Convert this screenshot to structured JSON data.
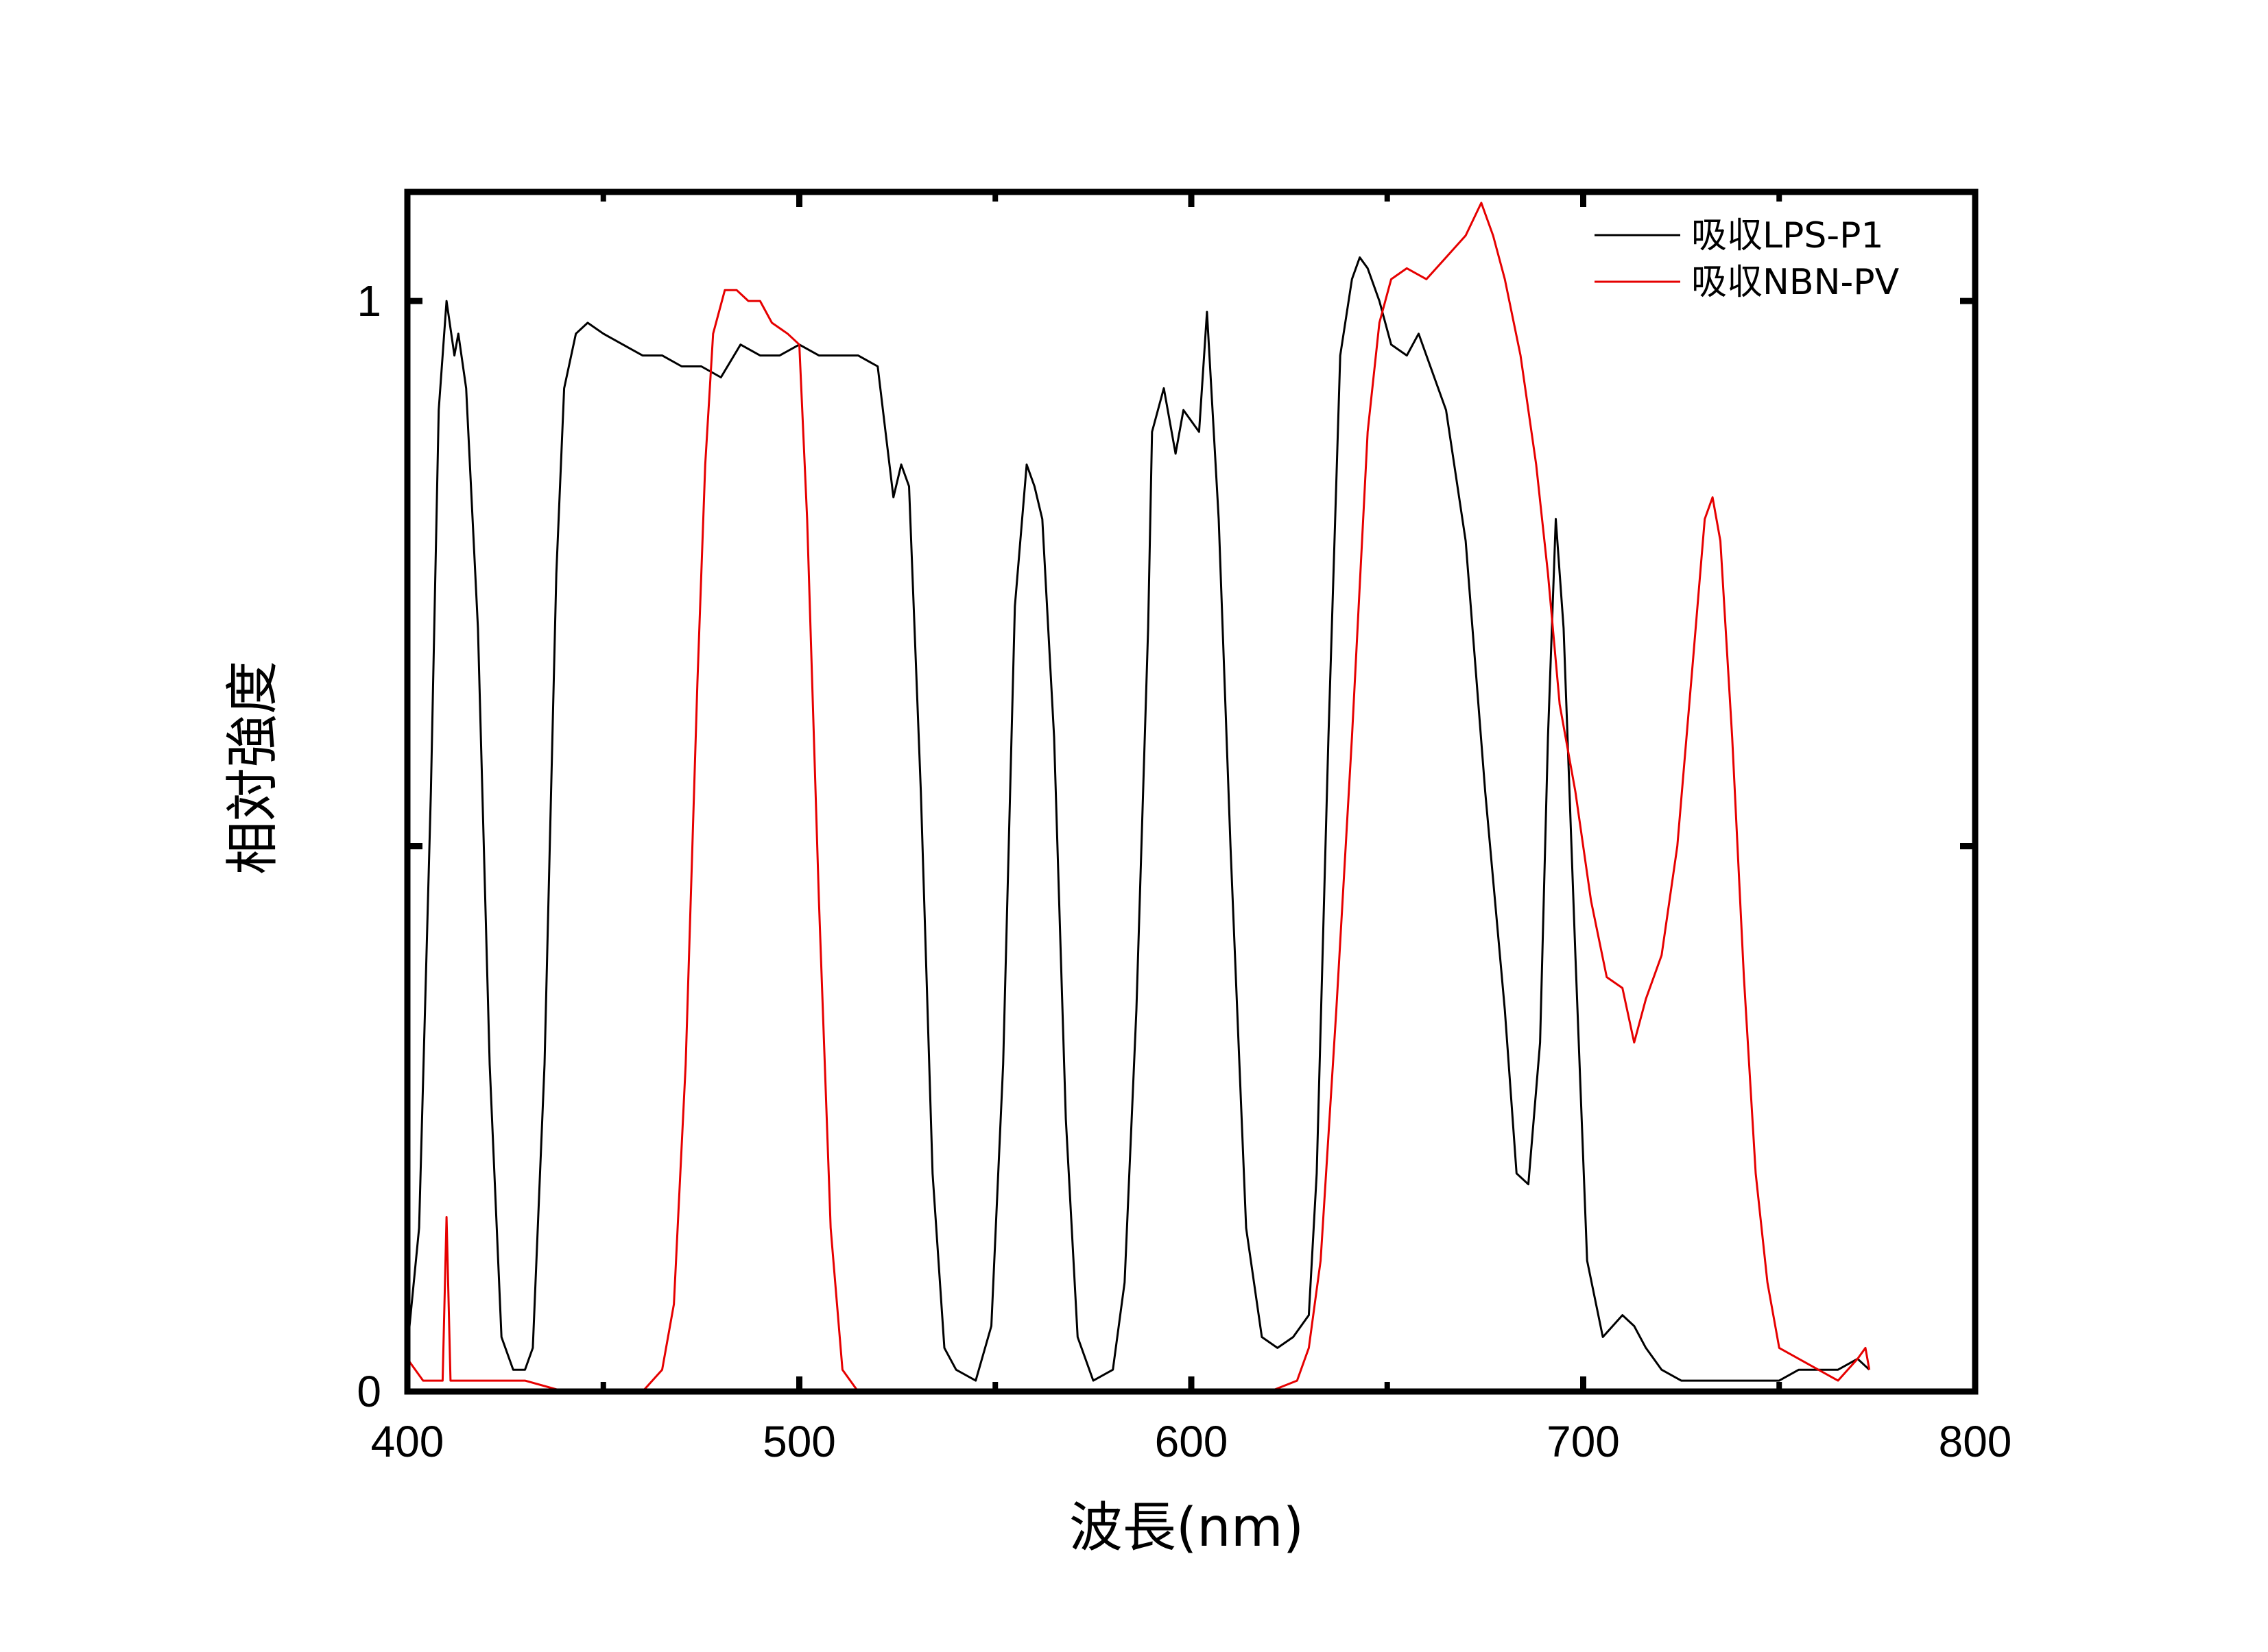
{
  "chart_data": {
    "type": "line",
    "title": "",
    "xlabel": "波長(nm)",
    "ylabel": "相対強度",
    "xlim": [
      400,
      800
    ],
    "ylim": [
      0,
      1.1
    ],
    "xticks": [
      400,
      500,
      600,
      700,
      800
    ],
    "xtick_labels": [
      "400",
      "500",
      "600",
      "700",
      "800"
    ],
    "yticks": [
      0,
      0.5,
      1
    ],
    "ytick_labels": [
      "0",
      "",
      "1"
    ],
    "grid": false,
    "legend_position": "top-right",
    "series": [
      {
        "name": "吸収LPS-P1",
        "color": "#000000",
        "points": [
          [
            400,
            0.04
          ],
          [
            403,
            0.15
          ],
          [
            406,
            0.55
          ],
          [
            408,
            0.9
          ],
          [
            410,
            1.0
          ],
          [
            412,
            0.95
          ],
          [
            413,
            0.97
          ],
          [
            415,
            0.92
          ],
          [
            418,
            0.7
          ],
          [
            421,
            0.3
          ],
          [
            424,
            0.05
          ],
          [
            427,
            0.02
          ],
          [
            430,
            0.02
          ],
          [
            432,
            0.04
          ],
          [
            435,
            0.3
          ],
          [
            438,
            0.75
          ],
          [
            440,
            0.92
          ],
          [
            443,
            0.97
          ],
          [
            446,
            0.98
          ],
          [
            450,
            0.97
          ],
          [
            455,
            0.96
          ],
          [
            460,
            0.95
          ],
          [
            465,
            0.95
          ],
          [
            470,
            0.94
          ],
          [
            475,
            0.94
          ],
          [
            480,
            0.93
          ],
          [
            485,
            0.96
          ],
          [
            490,
            0.95
          ],
          [
            495,
            0.95
          ],
          [
            500,
            0.96
          ],
          [
            505,
            0.95
          ],
          [
            510,
            0.95
          ],
          [
            515,
            0.95
          ],
          [
            520,
            0.94
          ],
          [
            522,
            0.88
          ],
          [
            524,
            0.82
          ],
          [
            526,
            0.85
          ],
          [
            528,
            0.83
          ],
          [
            531,
            0.55
          ],
          [
            534,
            0.2
          ],
          [
            537,
            0.04
          ],
          [
            540,
            0.02
          ],
          [
            545,
            0.01
          ],
          [
            549,
            0.06
          ],
          [
            552,
            0.3
          ],
          [
            555,
            0.72
          ],
          [
            558,
            0.85
          ],
          [
            560,
            0.83
          ],
          [
            562,
            0.8
          ],
          [
            565,
            0.6
          ],
          [
            568,
            0.25
          ],
          [
            571,
            0.05
          ],
          [
            575,
            0.01
          ],
          [
            580,
            0.02
          ],
          [
            583,
            0.1
          ],
          [
            586,
            0.35
          ],
          [
            589,
            0.7
          ],
          [
            590,
            0.88
          ],
          [
            593,
            0.92
          ],
          [
            596,
            0.86
          ],
          [
            598,
            0.9
          ],
          [
            602,
            0.88
          ],
          [
            604,
            0.99
          ],
          [
            607,
            0.8
          ],
          [
            610,
            0.5
          ],
          [
            614,
            0.15
          ],
          [
            618,
            0.05
          ],
          [
            622,
            0.04
          ],
          [
            626,
            0.05
          ],
          [
            630,
            0.07
          ],
          [
            632,
            0.2
          ],
          [
            635,
            0.6
          ],
          [
            638,
            0.95
          ],
          [
            641,
            1.02
          ],
          [
            643,
            1.04
          ],
          [
            645,
            1.03
          ],
          [
            648,
            1.0
          ],
          [
            651,
            0.96
          ],
          [
            655,
            0.95
          ],
          [
            658,
            0.97
          ],
          [
            660,
            0.95
          ],
          [
            665,
            0.9
          ],
          [
            670,
            0.78
          ],
          [
            675,
            0.55
          ],
          [
            680,
            0.35
          ],
          [
            683,
            0.2
          ],
          [
            686,
            0.19
          ],
          [
            689,
            0.32
          ],
          [
            691,
            0.6
          ],
          [
            693,
            0.8
          ],
          [
            695,
            0.7
          ],
          [
            698,
            0.4
          ],
          [
            701,
            0.12
          ],
          [
            705,
            0.05
          ],
          [
            710,
            0.07
          ],
          [
            713,
            0.06
          ],
          [
            716,
            0.04
          ],
          [
            720,
            0.02
          ],
          [
            725,
            0.01
          ],
          [
            730,
            0.01
          ],
          [
            735,
            0.01
          ],
          [
            740,
            0.01
          ],
          [
            745,
            0.01
          ],
          [
            750,
            0.01
          ],
          [
            755,
            0.02
          ],
          [
            760,
            0.02
          ],
          [
            765,
            0.02
          ],
          [
            770,
            0.03
          ],
          [
            773,
            0.02
          ]
        ]
      },
      {
        "name": "吸収NBN-PV",
        "color": "#e60000",
        "points": [
          [
            400,
            0.03
          ],
          [
            404,
            0.01
          ],
          [
            407,
            0.01
          ],
          [
            409,
            0.01
          ],
          [
            410,
            0.16
          ],
          [
            411,
            0.01
          ],
          [
            415,
            0.01
          ],
          [
            420,
            0.01
          ],
          [
            425,
            0.01
          ],
          [
            430,
            0.01
          ],
          [
            440,
            0.0
          ],
          [
            450,
            0.0
          ],
          [
            460,
            0.0
          ],
          [
            465,
            0.02
          ],
          [
            468,
            0.08
          ],
          [
            471,
            0.3
          ],
          [
            474,
            0.65
          ],
          [
            476,
            0.85
          ],
          [
            478,
            0.97
          ],
          [
            481,
            1.01
          ],
          [
            484,
            1.01
          ],
          [
            487,
            1.0
          ],
          [
            490,
            1.0
          ],
          [
            493,
            0.98
          ],
          [
            497,
            0.97
          ],
          [
            500,
            0.96
          ],
          [
            502,
            0.8
          ],
          [
            505,
            0.45
          ],
          [
            508,
            0.15
          ],
          [
            511,
            0.02
          ],
          [
            515,
            0.0
          ],
          [
            520,
            0.0
          ],
          [
            530,
            0.0
          ],
          [
            540,
            0.0
          ],
          [
            550,
            0.0
          ],
          [
            560,
            0.0
          ],
          [
            570,
            0.0
          ],
          [
            580,
            0.0
          ],
          [
            590,
            0.0
          ],
          [
            600,
            0.0
          ],
          [
            610,
            0.0
          ],
          [
            620,
            0.0
          ],
          [
            627,
            0.01
          ],
          [
            630,
            0.04
          ],
          [
            633,
            0.12
          ],
          [
            637,
            0.35
          ],
          [
            641,
            0.6
          ],
          [
            645,
            0.88
          ],
          [
            648,
            0.98
          ],
          [
            651,
            1.02
          ],
          [
            655,
            1.03
          ],
          [
            660,
            1.02
          ],
          [
            665,
            1.04
          ],
          [
            670,
            1.06
          ],
          [
            674,
            1.09
          ],
          [
            677,
            1.06
          ],
          [
            680,
            1.02
          ],
          [
            684,
            0.95
          ],
          [
            688,
            0.85
          ],
          [
            691,
            0.75
          ],
          [
            694,
            0.63
          ],
          [
            698,
            0.55
          ],
          [
            702,
            0.45
          ],
          [
            706,
            0.38
          ],
          [
            710,
            0.37
          ],
          [
            713,
            0.32
          ],
          [
            716,
            0.36
          ],
          [
            720,
            0.4
          ],
          [
            724,
            0.5
          ],
          [
            728,
            0.67
          ],
          [
            731,
            0.8
          ],
          [
            733,
            0.82
          ],
          [
            735,
            0.78
          ],
          [
            738,
            0.6
          ],
          [
            741,
            0.38
          ],
          [
            744,
            0.2
          ],
          [
            747,
            0.1
          ],
          [
            750,
            0.04
          ],
          [
            755,
            0.03
          ],
          [
            760,
            0.02
          ],
          [
            765,
            0.01
          ],
          [
            770,
            0.03
          ],
          [
            772,
            0.04
          ],
          [
            773,
            0.02
          ]
        ]
      }
    ]
  }
}
